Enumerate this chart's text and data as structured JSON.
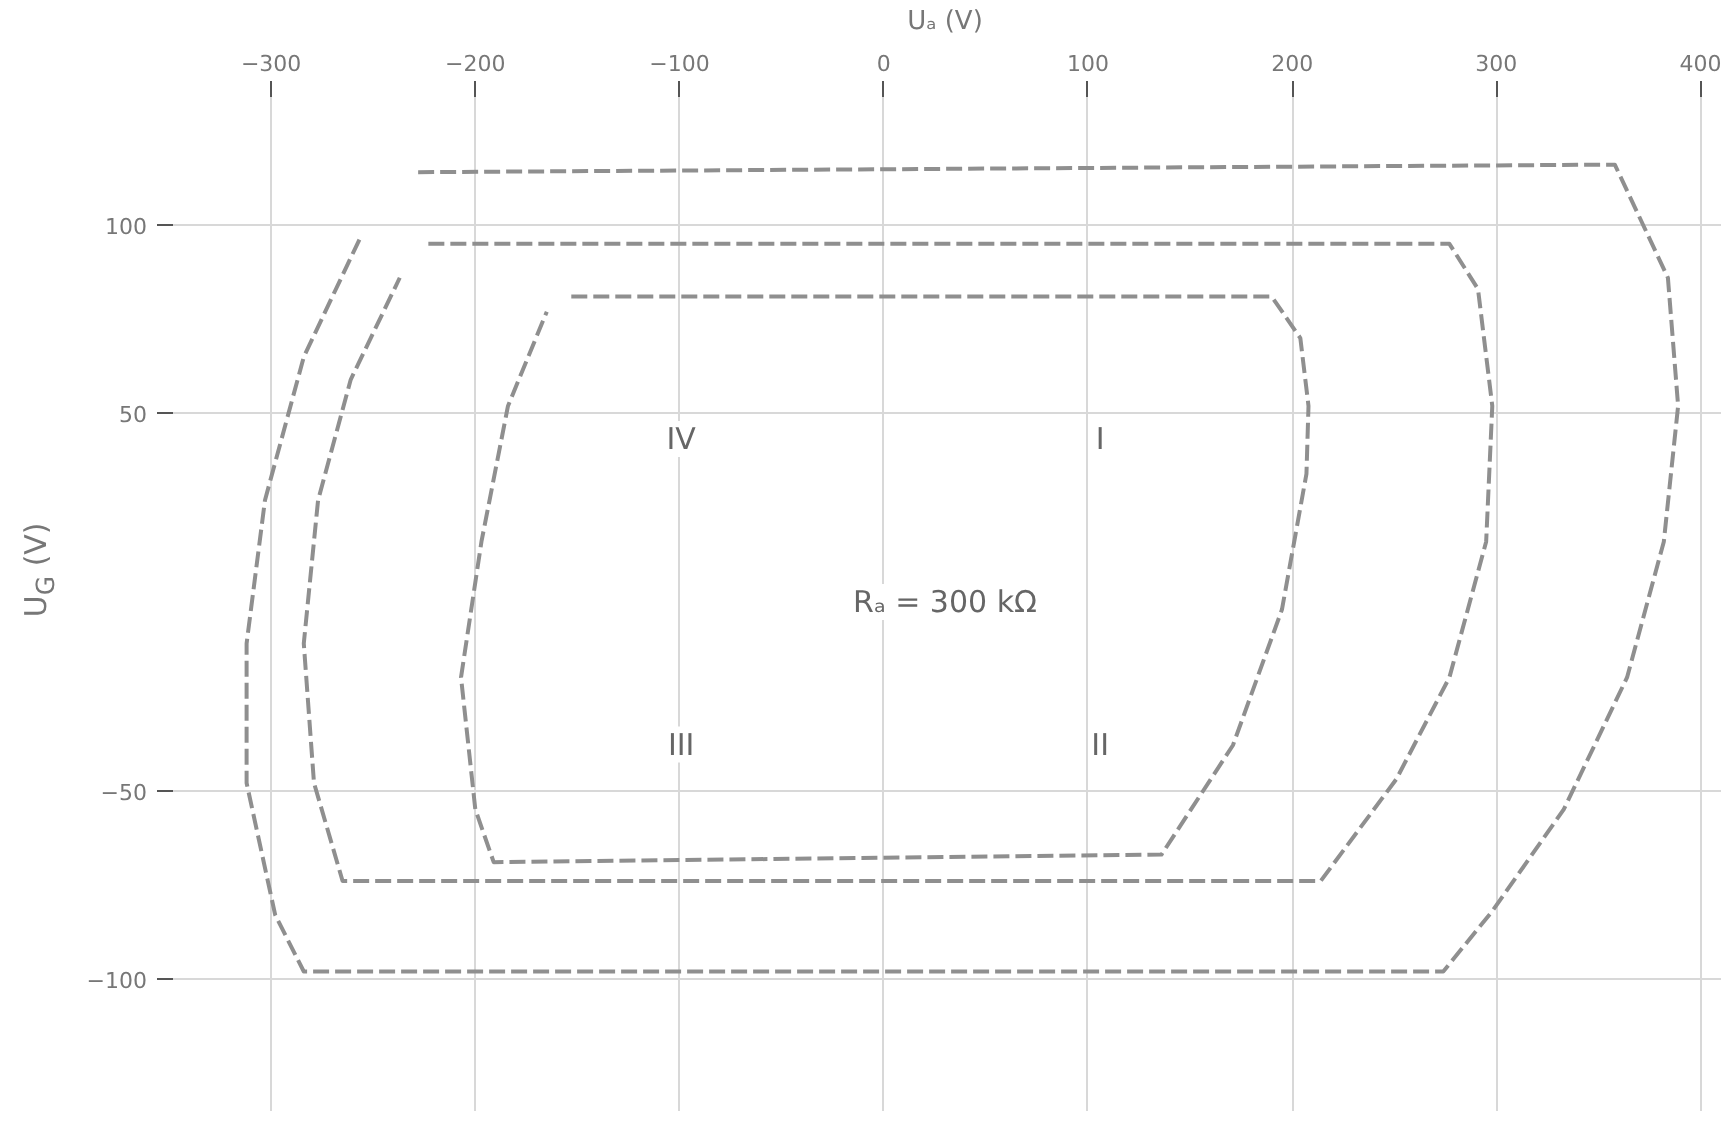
{
  "chart_data": {
    "type": "line",
    "xlabel": "Uₐ (V)",
    "ylabel": "U$_{G}$ (V)",
    "xlim": [
      -350,
      410
    ],
    "ylim": [
      -135,
      135
    ],
    "xticks": [
      -300,
      -200,
      -100,
      0,
      100,
      200,
      300,
      400
    ],
    "yticks": [
      -100,
      -50,
      50,
      100
    ],
    "grid": true,
    "line_style": "dashed",
    "marker": "none",
    "series": [
      {
        "color": "#8f8f8f",
        "x": [
          -228,
          358,
          384,
          389,
          382,
          364,
          333,
          298,
          274,
          -284,
          -298,
          -312,
          -312,
          -303,
          -284,
          -256
        ],
        "values": [
          114,
          116,
          86,
          52,
          16,
          -20,
          -55,
          -82,
          -98,
          -98,
          -83,
          -48,
          -11,
          27,
          65,
          97
        ]
      },
      {
        "color": "#8f8f8f",
        "x": [
          -223,
          277,
          291,
          298,
          295,
          277,
          251,
          214,
          -265,
          -279,
          -284,
          -277,
          -261,
          -237
        ],
        "values": [
          95,
          95,
          83,
          52,
          16,
          -20,
          -47,
          -74,
          -74,
          -48,
          -11,
          27,
          59,
          86
        ]
      },
      {
        "color": "#8f8f8f",
        "x": [
          -153,
          190,
          204,
          208,
          207,
          195,
          171,
          136,
          -191,
          -200,
          -207,
          -197,
          -184,
          -165
        ],
        "values": [
          81,
          81,
          70,
          52,
          34,
          -2,
          -38,
          -67,
          -69,
          -55,
          -20,
          16,
          52,
          77
        ]
      }
    ],
    "annotations": [
      "Rₐ = 300 kΩ",
      "I",
      "II",
      "IV",
      "III"
    ]
  }
}
